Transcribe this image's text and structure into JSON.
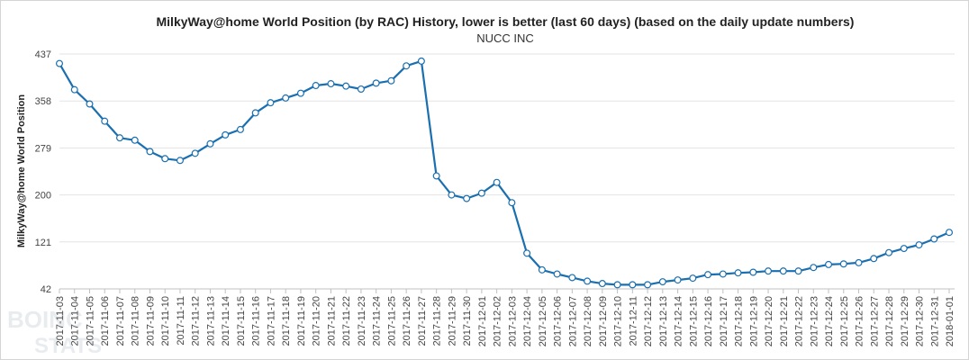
{
  "chart_data": {
    "type": "line",
    "title": "MilkyWay@home World Position (by RAC) History, lower is better (last 60 days) (based on the daily update numbers)",
    "subtitle": "NUCC INC",
    "xlabel": "",
    "ylabel": "MilkyWay@home World Position",
    "yticks": [
      42,
      121,
      200,
      279,
      358,
      437
    ],
    "ylim": [
      42,
      437
    ],
    "grid": true,
    "legend": "none",
    "line_color": "#1a6fb0",
    "x": [
      "2017-11-03",
      "2017-11-04",
      "2017-11-05",
      "2017-11-06",
      "2017-11-07",
      "2017-11-08",
      "2017-11-09",
      "2017-11-10",
      "2017-11-11",
      "2017-11-12",
      "2017-11-13",
      "2017-11-14",
      "2017-11-15",
      "2017-11-16",
      "2017-11-17",
      "2017-11-18",
      "2017-11-19",
      "2017-11-20",
      "2017-11-21",
      "2017-11-22",
      "2017-11-23",
      "2017-11-24",
      "2017-11-25",
      "2017-11-26",
      "2017-11-27",
      "2017-11-28",
      "2017-11-29",
      "2017-11-30",
      "2017-12-01",
      "2017-12-02",
      "2017-12-03",
      "2017-12-04",
      "2017-12-05",
      "2017-12-06",
      "2017-12-07",
      "2017-12-08",
      "2017-12-09",
      "2017-12-10",
      "2017-12-11",
      "2017-12-12",
      "2017-12-13",
      "2017-12-14",
      "2017-12-15",
      "2017-12-16",
      "2017-12-17",
      "2017-12-18",
      "2017-12-19",
      "2017-12-20",
      "2017-12-21",
      "2017-12-22",
      "2017-12-23",
      "2017-12-24",
      "2017-12-25",
      "2017-12-26",
      "2017-12-27",
      "2017-12-28",
      "2017-12-29",
      "2017-12-30",
      "2017-12-31",
      "2018-01-01"
    ],
    "series": [
      {
        "values": [
          421,
          377,
          353,
          324,
          296,
          292,
          273,
          261,
          258,
          270,
          286,
          301,
          310,
          338,
          355,
          363,
          371,
          384,
          387,
          383,
          378,
          388,
          392,
          417,
          425,
          232,
          200,
          194,
          203,
          221,
          187,
          102,
          74,
          67,
          61,
          55,
          51,
          49,
          49,
          49,
          54,
          57,
          60,
          66,
          67,
          69,
          70,
          72,
          72,
          72,
          78,
          83,
          84,
          86,
          93,
          103,
          110,
          116,
          126,
          137
        ]
      }
    ]
  }
}
